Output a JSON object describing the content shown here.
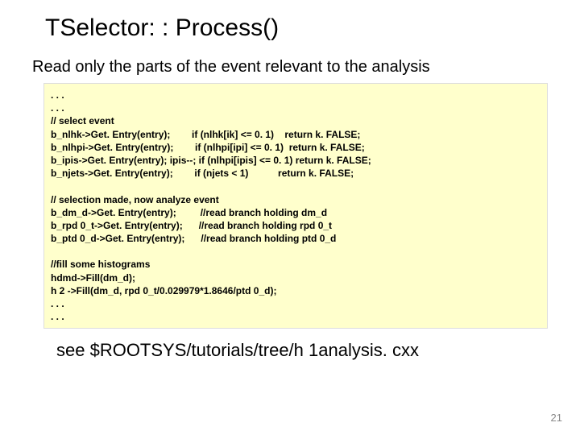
{
  "title": "TSelector: : Process()",
  "subtitle": "Read only the parts of the event relevant to the analysis",
  "code": ". . .\n. . .\n// select event\nb_nlhk->Get. Entry(entry);        if (nlhk[ik] <= 0. 1)    return k. FALSE;\nb_nlhpi->Get. Entry(entry);        if (nlhpi[ipi] <= 0. 1)  return k. FALSE;\nb_ipis->Get. Entry(entry); ipis--; if (nlhpi[ipis] <= 0. 1) return k. FALSE;\nb_njets->Get. Entry(entry);        if (njets < 1)           return k. FALSE;\n\n// selection made, now analyze event\nb_dm_d->Get. Entry(entry);         //read branch holding dm_d\nb_rpd 0_t->Get. Entry(entry);      //read branch holding rpd 0_t\nb_ptd 0_d->Get. Entry(entry);      //read branch holding ptd 0_d\n\n//fill some histograms\nhdmd->Fill(dm_d);\nh 2 ->Fill(dm_d, rpd 0_t/0.029979*1.8646/ptd 0_d);\n. . .\n. . .",
  "footer": "see $ROOTSYS/tutorials/tree/h 1analysis. cxx",
  "page_number": "21",
  "colors": {
    "code_bg": "#ffffcc",
    "page_bg": "#ffffff",
    "text": "#000000",
    "page_num": "#888888"
  }
}
